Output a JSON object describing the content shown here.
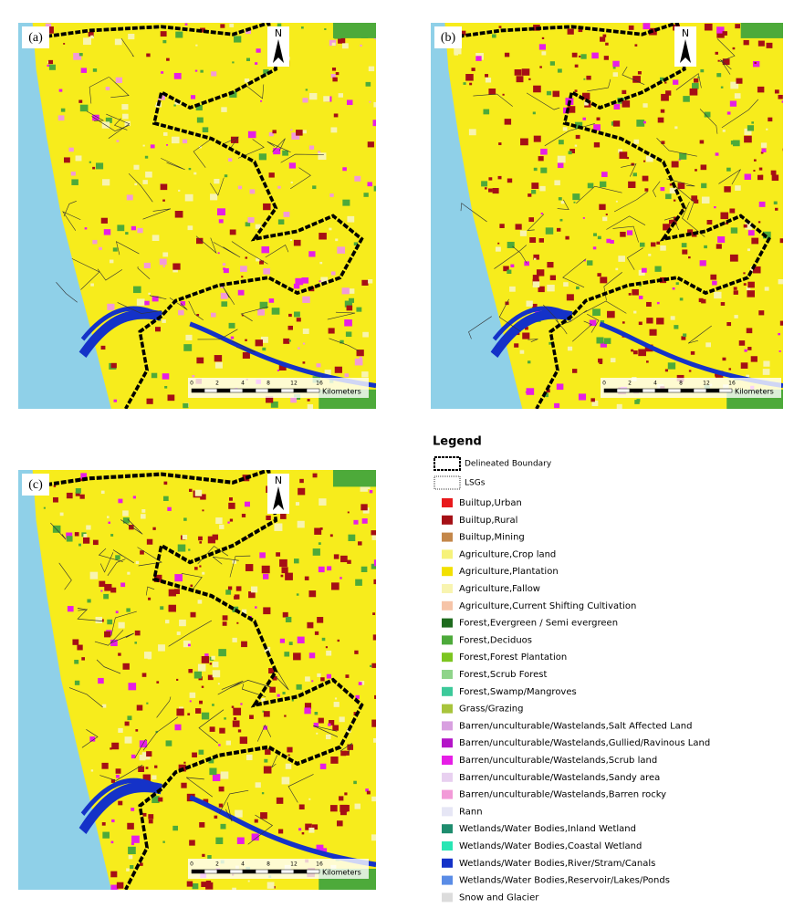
{
  "panels": [
    {
      "label": "(a)"
    },
    {
      "label": "(b)"
    },
    {
      "label": "(c)"
    }
  ],
  "north": "N",
  "scale": {
    "ticks": [
      "0",
      "2",
      "4",
      "8",
      "12",
      "16"
    ],
    "unit": "Kilometers"
  },
  "legend": {
    "title": "Legend",
    "boundaries": [
      {
        "label": "Delineated Boundary"
      },
      {
        "label": "LSGs"
      }
    ],
    "items": [
      {
        "label": "Builtup,Urban",
        "color": "#e8191c"
      },
      {
        "label": "Builtup,Rural",
        "color": "#a50f15"
      },
      {
        "label": "Builtup,Mining",
        "color": "#c4874a"
      },
      {
        "label": "Agriculture,Crop land",
        "color": "#f6f27a"
      },
      {
        "label": "Agriculture,Plantation",
        "color": "#f2e000"
      },
      {
        "label": "Agriculture,Fallow",
        "color": "#f8f4b0"
      },
      {
        "label": "Agriculture,Current Shifting Cultivation",
        "color": "#f6c4a8"
      },
      {
        "label": "Forest,Evergreen / Semi evergreen",
        "color": "#1e6b1e"
      },
      {
        "label": "Forest,Deciduos",
        "color": "#4daa3a"
      },
      {
        "label": "Forest,Forest Plantation",
        "color": "#7cc520"
      },
      {
        "label": "Forest,Scrub Forest",
        "color": "#8fd48a"
      },
      {
        "label": "Forest,Swamp/Mangroves",
        "color": "#3cc99a"
      },
      {
        "label": "Grass/Grazing",
        "color": "#a8c43c"
      },
      {
        "label": "Barren/unculturable/Wastelands,Salt Affected Land",
        "color": "#d8a0e0"
      },
      {
        "label": "Barren/unculturable/Wastelands,Gullied/Ravinous Land",
        "color": "#b414c8"
      },
      {
        "label": "Barren/unculturable/Wastelands,Scrub land",
        "color": "#e61ee6"
      },
      {
        "label": "Barren/unculturable/Wastelands,Sandy area",
        "color": "#e8d0f0"
      },
      {
        "label": "Barren/unculturable/Wastelands,Barren rocky",
        "color": "#f29ad8"
      },
      {
        "label": "Rann",
        "color": "#e6e6f5"
      },
      {
        "label": "Wetlands/Water Bodies,Inland Wetland",
        "color": "#1e8c6e"
      },
      {
        "label": "Wetlands/Water Bodies,Coastal Wetland",
        "color": "#28e6b4"
      },
      {
        "label": "Wetlands/Water Bodies,River/Stram/Canals",
        "color": "#1432c8"
      },
      {
        "label": "Wetlands/Water Bodies,Reservoir/Lakes/Ponds",
        "color": "#5a8ce6"
      },
      {
        "label": "Snow and Glacier",
        "color": "#dcdcdc"
      }
    ]
  }
}
